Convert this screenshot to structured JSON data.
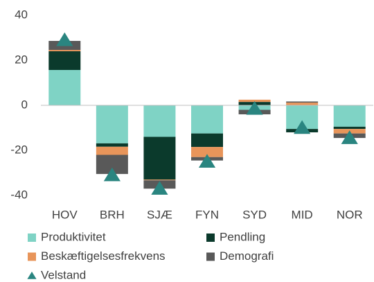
{
  "chart_data": {
    "type": "stacked_bar",
    "categories": [
      "HOV",
      "BRH",
      "SJÆ",
      "FYN",
      "SYD",
      "MID",
      "NOR"
    ],
    "series": [
      {
        "name": "Produktivitet",
        "color": "#7fd3c5",
        "values": [
          15.7,
          -16.9,
          -14,
          -12.5,
          -2,
          -10.5,
          -9.5
        ]
      },
      {
        "name": "Pendling",
        "color": "#0b3a2c",
        "values": [
          8.3,
          -1.5,
          -19,
          -6,
          1.5,
          -1.5,
          -1
        ]
      },
      {
        "name": "Beskæftigelsesfrekvens",
        "color": "#e8955a",
        "values": [
          0.6,
          -3.6,
          -0.3,
          -4.5,
          1,
          1.2,
          -2
        ]
      },
      {
        "name": "Demografi",
        "color": "#595959",
        "values": [
          4,
          -8.5,
          -3.7,
          -1.5,
          -2,
          0.5,
          -2
        ]
      }
    ],
    "markers": {
      "name": "Velstand",
      "color": "#2a8580",
      "values": [
        29,
        -31,
        -37,
        -25,
        -1.5,
        -10,
        -14.5
      ]
    },
    "ylim": [
      -40,
      40
    ],
    "yticks": [
      -40,
      -20,
      0,
      20,
      40
    ],
    "grid": false
  }
}
